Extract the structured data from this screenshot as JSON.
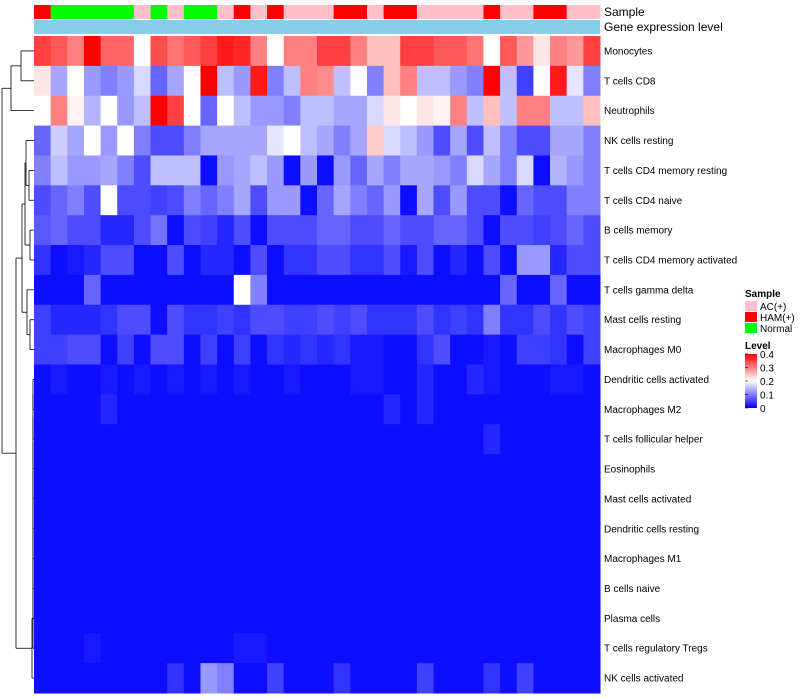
{
  "chart_data": {
    "type": "heatmap",
    "title": "",
    "annotation_tracks": [
      "Sample",
      "Gene expression level"
    ],
    "rows": [
      "Monocytes",
      "T cells CD8",
      "Neutrophils",
      "NK cells resting",
      "T cells CD4 memory resting",
      "T cells CD4 naive",
      "B cells memory",
      "T cells CD4 memory activated",
      "T cells gamma delta",
      "Mast cells resting",
      "Macrophages M0",
      "Dendritic cells activated",
      "Macrophages M2",
      "T cells follicular helper",
      "Eosinophils",
      "Mast cells activated",
      "Dendritic cells resting",
      "Macrophages M1",
      "B cells naive",
      "Plasma cells",
      "T cells regulatory  Tregs",
      "NK cells activated"
    ],
    "sample_groups": [
      "HAM(+)",
      "Normal",
      "Normal",
      "Normal",
      "Normal",
      "Normal",
      "AC(+)",
      "Normal",
      "AC(+)",
      "Normal",
      "Normal",
      "AC(+)",
      "HAM(+)",
      "AC(+)",
      "HAM(+)",
      "AC(+)",
      "AC(+)",
      "AC(+)",
      "HAM(+)",
      "HAM(+)",
      "AC(+)",
      "HAM(+)",
      "HAM(+)",
      "AC(+)",
      "AC(+)",
      "AC(+)",
      "AC(+)",
      "HAM(+)",
      "AC(+)",
      "AC(+)",
      "HAM(+)",
      "HAM(+)",
      "AC(+)",
      "AC(+)"
    ],
    "values": [
      [
        0.35,
        0.33,
        0.3,
        0.4,
        0.32,
        0.32,
        0.2,
        0.34,
        0.31,
        0.33,
        0.35,
        0.38,
        0.37,
        0.3,
        0.2,
        0.3,
        0.3,
        0.35,
        0.35,
        0.3,
        0.25,
        0.25,
        0.35,
        0.35,
        0.33,
        0.33,
        0.31,
        0.2,
        0.33,
        0.28,
        0.22,
        0.3,
        0.28,
        0.35
      ],
      [
        0.22,
        0.13,
        0.2,
        0.12,
        0.1,
        0.12,
        0.17,
        0.08,
        0.13,
        0.2,
        0.4,
        0.15,
        0.12,
        0.38,
        0.1,
        0.15,
        0.3,
        0.29,
        0.15,
        0.2,
        0.1,
        0.25,
        0.3,
        0.15,
        0.15,
        0.12,
        0.1,
        0.4,
        0.15,
        0.05,
        0.2,
        0.38,
        0.18,
        0.1
      ],
      [
        0.2,
        0.3,
        0.21,
        0.14,
        0.2,
        0.12,
        0.15,
        0.4,
        0.35,
        0.2,
        0.08,
        0.2,
        0.15,
        0.12,
        0.12,
        0.1,
        0.15,
        0.15,
        0.13,
        0.13,
        0.17,
        0.22,
        0.2,
        0.22,
        0.21,
        0.3,
        0.15,
        0.25,
        0.15,
        0.3,
        0.3,
        0.15,
        0.15,
        0.25
      ],
      [
        0.08,
        0.16,
        0.13,
        0.2,
        0.12,
        0.2,
        0.1,
        0.06,
        0.06,
        0.1,
        0.13,
        0.13,
        0.13,
        0.13,
        0.18,
        0.2,
        0.15,
        0.13,
        0.1,
        0.13,
        0.24,
        0.17,
        0.15,
        0.12,
        0.06,
        0.13,
        0.06,
        0.15,
        0.1,
        0.06,
        0.06,
        0.13,
        0.13,
        0.1
      ],
      [
        0.1,
        0.15,
        0.12,
        0.12,
        0.13,
        0.1,
        0.06,
        0.15,
        0.15,
        0.15,
        0.01,
        0.12,
        0.13,
        0.15,
        0.12,
        0.01,
        0.12,
        0.01,
        0.12,
        0.08,
        0.13,
        0.1,
        0.13,
        0.13,
        0.12,
        0.1,
        0.17,
        0.13,
        0.1,
        0.17,
        0.01,
        0.14,
        0.12,
        0.1
      ],
      [
        0.06,
        0.08,
        0.1,
        0.06,
        0.2,
        0.06,
        0.06,
        0.05,
        0.06,
        0.1,
        0.08,
        0.1,
        0.13,
        0.06,
        0.12,
        0.12,
        0.01,
        0.08,
        0.13,
        0.1,
        0.08,
        0.12,
        0.01,
        0.13,
        0.06,
        0.12,
        0.06,
        0.06,
        0.01,
        0.08,
        0.06,
        0.06,
        0.1,
        0.1
      ],
      [
        0.07,
        0.08,
        0.06,
        0.06,
        0.03,
        0.03,
        0.06,
        0.09,
        0.01,
        0.06,
        0.05,
        0.03,
        0.06,
        0.01,
        0.06,
        0.06,
        0.06,
        0.08,
        0.08,
        0.06,
        0.06,
        0.08,
        0.06,
        0.06,
        0.08,
        0.08,
        0.06,
        0.01,
        0.06,
        0.06,
        0.05,
        0.06,
        0.08,
        0.06
      ],
      [
        0.04,
        0.01,
        0.02,
        0.03,
        0.06,
        0.06,
        0.01,
        0.01,
        0.06,
        0.01,
        0.03,
        0.03,
        0.01,
        0.06,
        0.01,
        0.04,
        0.04,
        0.06,
        0.06,
        0.04,
        0.04,
        0.06,
        0.02,
        0.06,
        0.01,
        0.03,
        0.01,
        0.06,
        0.01,
        0.12,
        0.12,
        0.03,
        0.06,
        0.06
      ],
      [
        0.01,
        0.01,
        0.01,
        0.08,
        0.01,
        0.01,
        0.01,
        0.01,
        0.01,
        0.01,
        0.01,
        0.01,
        0.2,
        0.1,
        0.01,
        0.01,
        0.01,
        0.01,
        0.01,
        0.01,
        0.01,
        0.01,
        0.01,
        0.01,
        0.01,
        0.01,
        0.01,
        0.01,
        0.08,
        0.01,
        0.01,
        0.08,
        0.01,
        0.01
      ],
      [
        0.05,
        0.03,
        0.03,
        0.03,
        0.04,
        0.06,
        0.06,
        0.01,
        0.06,
        0.04,
        0.04,
        0.05,
        0.04,
        0.06,
        0.06,
        0.05,
        0.05,
        0.06,
        0.05,
        0.06,
        0.04,
        0.04,
        0.04,
        0.06,
        0.04,
        0.05,
        0.04,
        0.1,
        0.04,
        0.04,
        0.06,
        0.04,
        0.06,
        0.05
      ],
      [
        0.05,
        0.05,
        0.06,
        0.06,
        0.01,
        0.05,
        0.01,
        0.06,
        0.06,
        0.01,
        0.05,
        0.01,
        0.05,
        0.01,
        0.04,
        0.03,
        0.04,
        0.03,
        0.04,
        0.02,
        0.02,
        0.01,
        0.01,
        0.04,
        0.06,
        0.01,
        0.01,
        0.02,
        0.01,
        0.05,
        0.05,
        0.04,
        0.01,
        0.05
      ],
      [
        0.01,
        0.02,
        0.01,
        0.01,
        0.02,
        0.01,
        0.02,
        0.01,
        0.02,
        0.01,
        0.02,
        0.01,
        0.02,
        0.01,
        0.01,
        0.02,
        0.01,
        0.01,
        0.01,
        0.02,
        0.02,
        0.01,
        0.01,
        0.03,
        0.01,
        0.01,
        0.03,
        0.02,
        0.01,
        0.01,
        0.01,
        0.02,
        0.02,
        0.01
      ],
      [
        0.01,
        0.01,
        0.01,
        0.01,
        0.03,
        0.01,
        0.01,
        0.01,
        0.01,
        0.01,
        0.01,
        0.01,
        0.01,
        0.01,
        0.01,
        0.01,
        0.01,
        0.01,
        0.01,
        0.01,
        0.01,
        0.03,
        0.01,
        0.03,
        0.01,
        0.01,
        0.01,
        0.01,
        0.01,
        0.01,
        0.01,
        0.01,
        0.01,
        0.01
      ],
      [
        0.01,
        0.01,
        0.01,
        0.01,
        0.01,
        0.01,
        0.01,
        0.01,
        0.01,
        0.01,
        0.01,
        0.01,
        0.01,
        0.01,
        0.01,
        0.01,
        0.01,
        0.01,
        0.01,
        0.01,
        0.01,
        0.01,
        0.01,
        0.01,
        0.01,
        0.01,
        0.01,
        0.03,
        0.01,
        0.01,
        0.01,
        0.01,
        0.01,
        0.01
      ],
      [
        0.01,
        0.01,
        0.01,
        0.01,
        0.01,
        0.01,
        0.01,
        0.01,
        0.01,
        0.01,
        0.01,
        0.01,
        0.01,
        0.01,
        0.01,
        0.01,
        0.01,
        0.01,
        0.01,
        0.01,
        0.01,
        0.01,
        0.01,
        0.01,
        0.01,
        0.01,
        0.01,
        0.01,
        0.01,
        0.01,
        0.01,
        0.01,
        0.01,
        0.01
      ],
      [
        0.01,
        0.01,
        0.01,
        0.01,
        0.01,
        0.01,
        0.01,
        0.01,
        0.01,
        0.01,
        0.01,
        0.01,
        0.01,
        0.01,
        0.01,
        0.01,
        0.01,
        0.01,
        0.01,
        0.01,
        0.01,
        0.01,
        0.01,
        0.01,
        0.01,
        0.01,
        0.01,
        0.01,
        0.01,
        0.01,
        0.01,
        0.01,
        0.01,
        0.01
      ],
      [
        0.01,
        0.01,
        0.01,
        0.01,
        0.01,
        0.01,
        0.01,
        0.01,
        0.01,
        0.01,
        0.01,
        0.01,
        0.01,
        0.01,
        0.01,
        0.01,
        0.01,
        0.01,
        0.01,
        0.01,
        0.01,
        0.01,
        0.01,
        0.01,
        0.01,
        0.01,
        0.01,
        0.01,
        0.01,
        0.01,
        0.01,
        0.01,
        0.01,
        0.01
      ],
      [
        0.01,
        0.01,
        0.01,
        0.01,
        0.01,
        0.01,
        0.01,
        0.01,
        0.01,
        0.01,
        0.01,
        0.01,
        0.01,
        0.01,
        0.01,
        0.01,
        0.01,
        0.01,
        0.01,
        0.01,
        0.01,
        0.01,
        0.01,
        0.01,
        0.01,
        0.01,
        0.01,
        0.01,
        0.01,
        0.01,
        0.01,
        0.01,
        0.01,
        0.01
      ],
      [
        0.01,
        0.01,
        0.01,
        0.01,
        0.01,
        0.01,
        0.01,
        0.01,
        0.01,
        0.01,
        0.01,
        0.01,
        0.01,
        0.01,
        0.01,
        0.01,
        0.01,
        0.01,
        0.01,
        0.01,
        0.01,
        0.01,
        0.01,
        0.01,
        0.01,
        0.01,
        0.01,
        0.01,
        0.01,
        0.01,
        0.01,
        0.01,
        0.01,
        0.01
      ],
      [
        0.01,
        0.01,
        0.01,
        0.01,
        0.01,
        0.01,
        0.01,
        0.01,
        0.01,
        0.01,
        0.01,
        0.01,
        0.01,
        0.01,
        0.01,
        0.01,
        0.01,
        0.01,
        0.01,
        0.01,
        0.01,
        0.01,
        0.01,
        0.01,
        0.01,
        0.01,
        0.01,
        0.01,
        0.01,
        0.01,
        0.01,
        0.01,
        0.01,
        0.01
      ],
      [
        0.01,
        0.01,
        0.01,
        0.02,
        0.01,
        0.01,
        0.01,
        0.01,
        0.01,
        0.01,
        0.01,
        0.01,
        0.02,
        0.02,
        0.01,
        0.01,
        0.01,
        0.01,
        0.01,
        0.01,
        0.01,
        0.01,
        0.01,
        0.01,
        0.01,
        0.01,
        0.01,
        0.01,
        0.01,
        0.01,
        0.01,
        0.01,
        0.01,
        0.01
      ],
      [
        0.01,
        0.01,
        0.01,
        0.01,
        0.01,
        0.01,
        0.01,
        0.01,
        0.04,
        0.01,
        0.12,
        0.1,
        0.01,
        0.01,
        0.05,
        0.01,
        0.01,
        0.01,
        0.04,
        0.01,
        0.01,
        0.01,
        0.01,
        0.05,
        0.01,
        0.01,
        0.01,
        0.04,
        0.01,
        0.05,
        0.01,
        0.01,
        0.01,
        0.01
      ]
    ],
    "legend": {
      "sample_title": "Sample",
      "sample_items": [
        {
          "label": "AC(+)",
          "color": "#ffc0cb"
        },
        {
          "label": "HAM(+)",
          "color": "#ff0000"
        },
        {
          "label": "Normal",
          "color": "#00ff00"
        }
      ],
      "level_title": "Level",
      "level_ticks": [
        {
          "value": 0.4,
          "label": "0.4"
        },
        {
          "value": 0.3,
          "label": "0.3"
        },
        {
          "value": 0.2,
          "label": "0.2"
        },
        {
          "value": 0.1,
          "label": "0.1"
        },
        {
          "value": 0,
          "label": "0"
        }
      ],
      "level_range": [
        0,
        0.4
      ]
    },
    "colors": {
      "low": "#0000ff",
      "mid": "#ffffff",
      "high": "#ff0000",
      "gene_track": "#87ceeb"
    }
  }
}
